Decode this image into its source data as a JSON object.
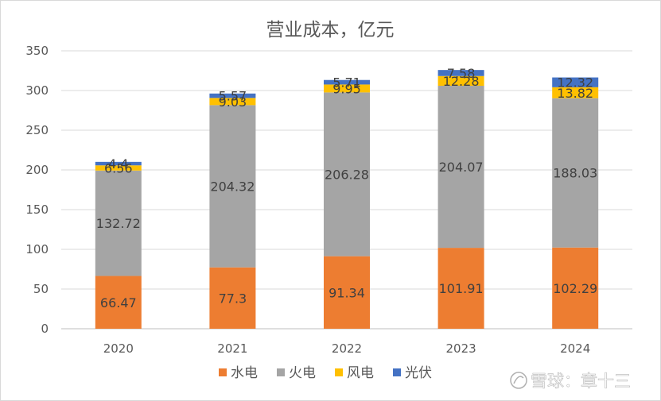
{
  "chart_data": {
    "type": "bar",
    "stacked": true,
    "title": "营业成本，亿元",
    "categories": [
      "2020",
      "2021",
      "2022",
      "2023",
      "2024"
    ],
    "series": [
      {
        "name": "水电",
        "color": "#ed7d31",
        "values": [
          66.47,
          77.3,
          91.34,
          101.91,
          102.29
        ]
      },
      {
        "name": "火电",
        "color": "#a5a5a5",
        "values": [
          132.72,
          204.32,
          206.28,
          204.07,
          188.03
        ]
      },
      {
        "name": "风电",
        "color": "#ffc000",
        "values": [
          6.56,
          9.03,
          9.95,
          12.28,
          13.82
        ]
      },
      {
        "name": "光伏",
        "color": "#4472c4",
        "values": [
          4.4,
          5.57,
          5.71,
          7.58,
          12.32
        ]
      }
    ],
    "ylim": [
      0,
      350
    ],
    "yticks": [
      "0",
      "50",
      "100",
      "150",
      "200",
      "250",
      "300",
      "350"
    ],
    "grid": true,
    "legend_position": "bottom"
  },
  "watermark": {
    "text": "雪球：章十三",
    "icon": "snowball-icon"
  }
}
